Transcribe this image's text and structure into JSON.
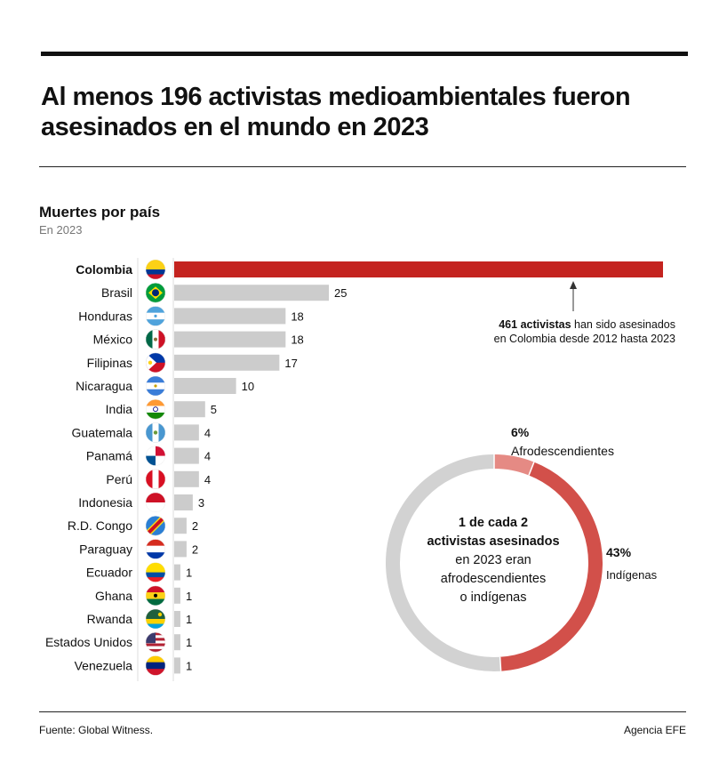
{
  "title": "Al menos 196 activistas medioambientales fueron asesinados en el mundo en 2023",
  "section": {
    "title": "Muertes por país",
    "subtitle": "En 2023"
  },
  "colors": {
    "highlight": "#c4231f",
    "bar": "#cccccc",
    "donut_grey": "#d2d2d2",
    "donut_red": "#d2504a",
    "donut_light": "#e58a84"
  },
  "chart_data": [
    {
      "type": "bar",
      "orientation": "horizontal",
      "categories": [
        "Colombia",
        "Brasil",
        "Honduras",
        "México",
        "Filipinas",
        "Nicaragua",
        "India",
        "Guatemala",
        "Panamá",
        "Perú",
        "Indonesia",
        "R.D. Congo",
        "Paraguay",
        "Ecuador",
        "Ghana",
        "Rwanda",
        "Estados Unidos",
        "Venezuela"
      ],
      "values": [
        79,
        25,
        18,
        18,
        17,
        10,
        5,
        4,
        4,
        4,
        3,
        2,
        2,
        1,
        1,
        1,
        1,
        1
      ],
      "labels": [
        "",
        "25",
        "18",
        "18",
        "17",
        "10",
        "5",
        "4",
        "4",
        "4",
        "3",
        "2",
        "2",
        "1",
        "1",
        "1",
        "1",
        "1"
      ],
      "highlight": "Colombia",
      "annotation": {
        "bold": "461 activistas",
        "text1": " han sido asesinados",
        "text2": "en Colombia desde 2012 hasta 2023"
      }
    },
    {
      "type": "pie",
      "subtype": "donut",
      "slices": [
        {
          "label": "Afrodescendientes",
          "pct_label": "6%",
          "value": 6
        },
        {
          "label": "Indígenas",
          "pct_label": "43%",
          "value": 43
        },
        {
          "label": "",
          "value": 51
        }
      ],
      "center_text": {
        "line1": "1 de cada 2",
        "line2": "activistas asesinados",
        "line3": "en 2023 eran",
        "line4": "afrodescendientes",
        "line5": "o indígenas"
      }
    }
  ],
  "footer": {
    "source": "Fuente: Global Witness.",
    "agency": "Agencia EFE"
  }
}
